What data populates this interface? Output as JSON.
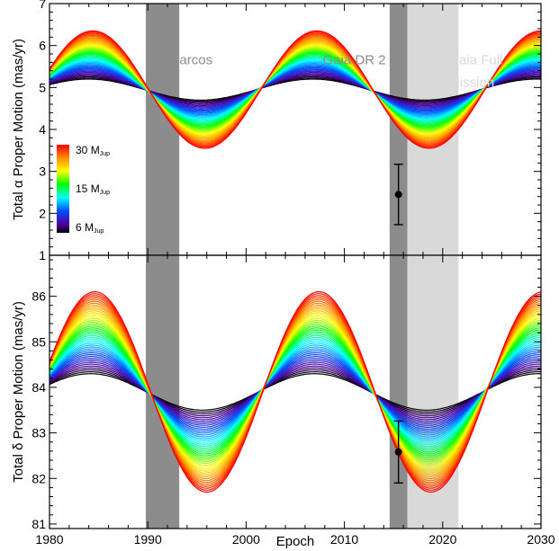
{
  "chart_data": [
    {
      "type": "line",
      "ylabel_prefix": "Total",
      "ylabel_symbol": "α",
      "ylabel_suffix": "Proper Motion (mas/yr)",
      "xlim": [
        1980,
        2030
      ],
      "ylim": [
        1,
        7
      ],
      "yticks": [
        1,
        2,
        3,
        4,
        5,
        6,
        7
      ],
      "period_years": 22.8,
      "peak_epoch": 1984.4,
      "model_center": 4.95,
      "amplitude_range": [
        0.25,
        1.4
      ],
      "bands": [
        {
          "name": "Hipparcos",
          "start": 1989.8,
          "end": 1993.2,
          "color": "#8c8c8c"
        },
        {
          "name": "Gaia DR 2",
          "start": 2014.6,
          "end": 2016.4,
          "color": "#8c8c8c"
        },
        {
          "name": "Gaia Full Mission",
          "start": 2016.4,
          "end": 2021.6,
          "color": "#d9d9d9"
        }
      ],
      "band_labels": [
        {
          "text": "Hipparcos",
          "x": 1990.4,
          "y": 5.55,
          "color": "#8c8c8c"
        },
        {
          "text": "Gaia DR 2",
          "x": 2007.8,
          "y": 5.55,
          "color": "#8c8c8c"
        },
        {
          "text": "Gaia Full",
          "x": 2020.6,
          "y": 5.55,
          "color": "#d9d9d9"
        },
        {
          "text": "Mission",
          "x": 2020.6,
          "y": 5.02,
          "color": "#d9d9d9"
        }
      ],
      "measurement": {
        "x": 2015.5,
        "y": 2.45,
        "yerr": 0.72
      },
      "colorbar": {
        "labels": [
          {
            "value": "30",
            "unit": "M",
            "sub": "Jup"
          },
          {
            "value": "15",
            "unit": "M",
            "sub": "Jup"
          },
          {
            "value": "6",
            "unit": "M",
            "sub": "Jup"
          }
        ]
      }
    },
    {
      "type": "line",
      "ylabel_prefix": "Total",
      "ylabel_symbol": "δ",
      "ylabel_suffix": "Proper Motion (mas/yr)",
      "xlabel": "Epoch",
      "xlim": [
        1980,
        2030
      ],
      "ylim": [
        80.9,
        86.9
      ],
      "xticks": [
        1980,
        1990,
        2000,
        2010,
        2020,
        2030
      ],
      "yticks": [
        81,
        82,
        83,
        84,
        85,
        86
      ],
      "period_years": 22.8,
      "peak_epoch": 1984.6,
      "model_center": 83.9,
      "amplitude_range": [
        0.4,
        2.2
      ],
      "bands": [
        {
          "name": "Hipparcos",
          "start": 1989.8,
          "end": 1993.2,
          "color": "#8c8c8c"
        },
        {
          "name": "Gaia DR 2",
          "start": 2014.6,
          "end": 2016.4,
          "color": "#8c8c8c"
        },
        {
          "name": "Gaia Full Mission",
          "start": 2016.4,
          "end": 2021.6,
          "color": "#d9d9d9"
        }
      ],
      "measurement": {
        "x": 2015.5,
        "y": 82.58,
        "yerr": 0.68
      }
    }
  ]
}
